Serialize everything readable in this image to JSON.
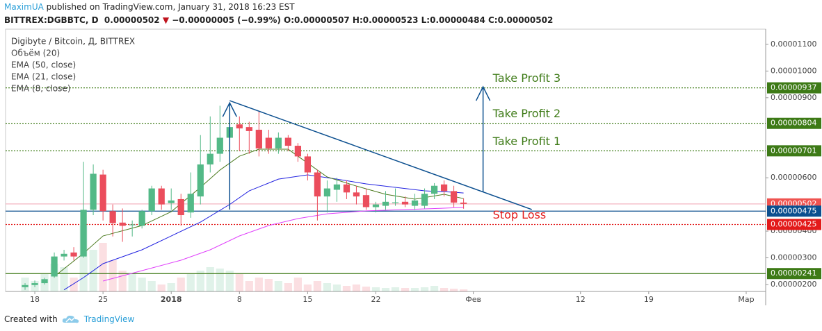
{
  "header": {
    "author": "MaximUA",
    "published": "published on TradingView.com, January 31, 2018 16:23 EST",
    "symbol": "BITTREX:DGBBTC, D",
    "last": "0.00000502",
    "change": "−0.00000005 (−0.99%)",
    "ohlc": [
      "O:0.00000507",
      "H:0.00000523",
      "L:0.00000484",
      "C:0.00000502"
    ]
  },
  "footer": {
    "created": "Created with",
    "brand": "TradingView"
  },
  "chart_data": {
    "type": "candlestick",
    "title": "Digibyte / Bitcoin, Д, BITTREX",
    "up_color": "#53b987",
    "down_color": "#eb4d5c",
    "xlim": [
      "2017-12-15",
      "2018-03-03"
    ],
    "xticks": [
      {
        "value": "2017-12-18",
        "label": "18"
      },
      {
        "value": "2017-12-25",
        "label": "25"
      },
      {
        "value": "2018-01-01",
        "label": "2018"
      },
      {
        "value": "2018-01-08",
        "label": "8"
      },
      {
        "value": "2018-01-15",
        "label": "15"
      },
      {
        "value": "2018-01-22",
        "label": "22"
      },
      {
        "value": "2018-02-01",
        "label": "Фев"
      },
      {
        "value": "2018-02-12",
        "label": "12"
      },
      {
        "value": "2018-02-19",
        "label": "19"
      },
      {
        "value": "2018-03-01",
        "label": "Мар"
      }
    ],
    "ylim": [
      1.74e-06,
      1.157e-05
    ],
    "yticks": [
      {
        "value": 1.1e-05,
        "label": "0.00001100"
      },
      {
        "value": 1e-05,
        "label": "0.00001000"
      },
      {
        "value": 9e-06,
        "label": "0.00000900"
      },
      {
        "value": 6e-06,
        "label": "0.00000600"
      },
      {
        "value": 4e-06,
        "label": "0.00000400"
      },
      {
        "value": 3e-06,
        "label": "0.00000300"
      },
      {
        "value": 2e-06,
        "label": "0.00000200"
      }
    ],
    "candles": {
      "x": [
        "2017-12-17",
        "2017-12-18",
        "2017-12-19",
        "2017-12-20",
        "2017-12-21",
        "2017-12-22",
        "2017-12-23",
        "2017-12-24",
        "2017-12-25",
        "2017-12-26",
        "2017-12-27",
        "2017-12-28",
        "2017-12-29",
        "2017-12-30",
        "2017-12-31",
        "2018-01-01",
        "2018-01-02",
        "2018-01-03",
        "2018-01-04",
        "2018-01-05",
        "2018-01-06",
        "2018-01-07",
        "2018-01-08",
        "2018-01-09",
        "2018-01-10",
        "2018-01-11",
        "2018-01-12",
        "2018-01-13",
        "2018-01-14",
        "2018-01-15",
        "2018-01-16",
        "2018-01-17",
        "2018-01-18",
        "2018-01-19",
        "2018-01-20",
        "2018-01-21",
        "2018-01-22",
        "2018-01-23",
        "2018-01-24",
        "2018-01-25",
        "2018-01-26",
        "2018-01-27",
        "2018-01-28",
        "2018-01-29",
        "2018-01-30",
        "2018-01-31"
      ],
      "open": [
        1.9e-06,
        1.98e-06,
        2.05e-06,
        2.3e-06,
        3.05e-06,
        3.2e-06,
        3.05e-06,
        4.8e-06,
        6.12e-06,
        4.75e-06,
        4.32e-06,
        4.22e-06,
        4.2e-06,
        4.75e-06,
        5.6e-06,
        5.05e-06,
        5.2e-06,
        4.7e-06,
        5.3e-06,
        6.5e-06,
        6.9e-06,
        7.5e-06,
        8e-06,
        7.9e-06,
        7.8e-06,
        7.5e-06,
        7.1e-06,
        7.5e-06,
        7.2e-06,
        6.8e-06,
        6.2e-06,
        5.3e-06,
        5.55e-06,
        5.75e-06,
        5.45e-06,
        5.35e-06,
        4.9e-06,
        4.95e-06,
        5.05e-06,
        5.1e-06,
        4.95e-06,
        4.95e-06,
        5.4e-06,
        5.75e-06,
        5.5e-06,
        5.07e-06
      ],
      "high": [
        2.05e-06,
        2.15e-06,
        2.25e-06,
        3.2e-06,
        3.3e-06,
        3.4e-06,
        6.6e-06,
        6.5e-06,
        6.3e-06,
        5e-06,
        4.85e-06,
        4.4e-06,
        4.8e-06,
        5.7e-06,
        5.7e-06,
        5.6e-06,
        5.4e-06,
        6.2e-06,
        7.6e-06,
        8.3e-06,
        8.7e-06,
        8.8e-06,
        8.3e-06,
        8.1e-06,
        8.5e-06,
        7.8e-06,
        7.7e-06,
        7.6e-06,
        7.3e-06,
        6.9e-06,
        6.3e-06,
        5.9e-06,
        6e-06,
        5.9e-06,
        5.7e-06,
        5.6e-06,
        5.1e-06,
        5.5e-06,
        5.6e-06,
        5.3e-06,
        5.4e-06,
        5.6e-06,
        5.8e-06,
        5.9e-06,
        5.7e-06,
        5.23e-06
      ],
      "low": [
        1.8e-06,
        1.9e-06,
        2e-06,
        2.25e-06,
        2.9e-06,
        2.9e-06,
        3e-06,
        4.6e-06,
        4.4e-06,
        3.8e-06,
        3.6e-06,
        3.8e-06,
        4.1e-06,
        4.6e-06,
        4.8e-06,
        4.8e-06,
        4.2e-06,
        4.5e-06,
        5e-06,
        6.2e-06,
        6.6e-06,
        6.5e-06,
        7e-06,
        6.9e-06,
        6.8e-06,
        6.9e-06,
        6.9e-06,
        7e-06,
        6.6e-06,
        5.9e-06,
        4.4e-06,
        4.7e-06,
        5.1e-06,
        5.2e-06,
        5e-06,
        4.8e-06,
        4.7e-06,
        4.8e-06,
        4.95e-06,
        4.9e-06,
        4.8e-06,
        4.85e-06,
        5.2e-06,
        5.3e-06,
        4.9e-06,
        4.84e-06
      ],
      "close": [
        1.98e-06,
        2.05e-06,
        2.2e-06,
        3.05e-06,
        3.15e-06,
        3.05e-06,
        4.8e-06,
        6.15e-06,
        4.75e-06,
        4.3e-06,
        4.2e-06,
        4.25e-06,
        4.75e-06,
        5.6e-06,
        5e-06,
        5.15e-06,
        4.6e-06,
        5.4e-06,
        6.5e-06,
        6.9e-06,
        7.5e-06,
        7.9e-06,
        7.85e-06,
        7.75e-06,
        7.1e-06,
        7.1e-06,
        7.5e-06,
        7.2e-06,
        6.8e-06,
        6.2e-06,
        5.3e-06,
        5.6e-06,
        5.75e-06,
        5.45e-06,
        5.3e-06,
        4.9e-06,
        5e-06,
        5.1e-06,
        5.08e-06,
        5e-06,
        5.15e-06,
        5.4e-06,
        5.7e-06,
        5.5e-06,
        5.07e-06,
        5.02e-06
      ]
    },
    "volume": {
      "name": "Объём (20)",
      "values": [
        20,
        15,
        25,
        40,
        35,
        20,
        95,
        60,
        70,
        45,
        30,
        25,
        20,
        15,
        10,
        12,
        20,
        25,
        30,
        35,
        33,
        30,
        25,
        15,
        20,
        18,
        15,
        12,
        20,
        10,
        15,
        12,
        10,
        8,
        10,
        7,
        6,
        5,
        6,
        5,
        5,
        6,
        8,
        5,
        4,
        3
      ]
    },
    "series": [
      {
        "name": "EMA (50, close)",
        "color": "#e040fb",
        "x": [
          "2017-12-25",
          "2017-12-29",
          "2018-01-02",
          "2018-01-05",
          "2018-01-08",
          "2018-01-11",
          "2018-01-14",
          "2018-01-17",
          "2018-01-21",
          "2018-01-25",
          "2018-01-29",
          "2018-01-31"
        ],
        "values": [
          2.13e-06,
          2.52e-06,
          2.91e-06,
          3.3e-06,
          3.82e-06,
          4.21e-06,
          4.47e-06,
          4.65e-06,
          4.76e-06,
          4.81e-06,
          4.86e-06,
          4.89e-06
        ]
      },
      {
        "name": "EMA (21, close)",
        "color": "#2020e0",
        "x": [
          "2017-12-21",
          "2017-12-23",
          "2017-12-25",
          "2017-12-29",
          "2018-01-01",
          "2018-01-04",
          "2018-01-07",
          "2018-01-09",
          "2018-01-12",
          "2018-01-15",
          "2018-01-18",
          "2018-01-21",
          "2018-01-24",
          "2018-01-27",
          "2018-01-30",
          "2018-01-31"
        ],
        "values": [
          1.8e-06,
          2.26e-06,
          2.78e-06,
          3.3e-06,
          3.82e-06,
          4.34e-06,
          5e-06,
          5.51e-06,
          5.95e-06,
          6.11e-06,
          5.95e-06,
          5.77e-06,
          5.64e-06,
          5.51e-06,
          5.46e-06,
          5.43e-06
        ]
      },
      {
        "name": "EMA (8, close)",
        "color": "#4b7a1e",
        "x": [
          "2017-12-20",
          "2017-12-23",
          "2017-12-25",
          "2017-12-29",
          "2018-01-01",
          "2018-01-04",
          "2018-01-06",
          "2018-01-08",
          "2018-01-10",
          "2018-01-13",
          "2018-01-15",
          "2018-01-17",
          "2018-01-20",
          "2018-01-23",
          "2018-01-26",
          "2018-01-29",
          "2018-01-31"
        ],
        "values": [
          2.3e-06,
          3.17e-06,
          3.82e-06,
          4.21e-06,
          4.73e-06,
          5.64e-06,
          6.29e-06,
          6.81e-06,
          7.07e-06,
          7.07e-06,
          6.55e-06,
          6.03e-06,
          5.69e-06,
          5.38e-06,
          5.2e-06,
          5.38e-06,
          5.22e-06
        ]
      }
    ],
    "levels": [
      {
        "value": 9.37e-06,
        "label": "0.00000937",
        "color": "#3d7a16",
        "dashed": true,
        "note": "Take Profit 3"
      },
      {
        "value": 8.04e-06,
        "label": "0.00000804",
        "color": "#3d7a16",
        "dashed": true,
        "note": "Take Profit 2"
      },
      {
        "value": 7.01e-06,
        "label": "0.00000701",
        "color": "#3d7a16",
        "dashed": true,
        "note": "Take Profit 1"
      },
      {
        "value": 5.02e-06,
        "label": "0.00000502",
        "color": "#ef5350",
        "line_color": "#f4b6c2",
        "dashed": false
      },
      {
        "value": 4.75e-06,
        "label": "0.00000475",
        "color": "#0b4f8f",
        "dashed": false
      },
      {
        "value": 4.25e-06,
        "label": "0.00000425",
        "color": "#e31a1a",
        "dashed": true,
        "note": "Stop Loss"
      },
      {
        "value": 2.41e-06,
        "label": "0.00000241",
        "color": "#3d7a16",
        "dashed": false
      }
    ],
    "note_x": "2018-02-03",
    "drawings": [
      {
        "kind": "line",
        "color": "#0b4f8f",
        "x": [
          "2018-01-07",
          "2018-02-07"
        ],
        "y": [
          8.89e-06,
          4.81e-06
        ]
      },
      {
        "kind": "arrow",
        "color": "#0b4f8f",
        "x": [
          "2018-01-07",
          "2018-01-07"
        ],
        "y": [
          4.81e-06,
          8.81e-06
        ]
      },
      {
        "kind": "arrow",
        "color": "#0b4f8f",
        "x": [
          "2018-02-02",
          "2018-02-02"
        ],
        "y": [
          5.46e-06,
          9.41e-06
        ]
      }
    ]
  }
}
